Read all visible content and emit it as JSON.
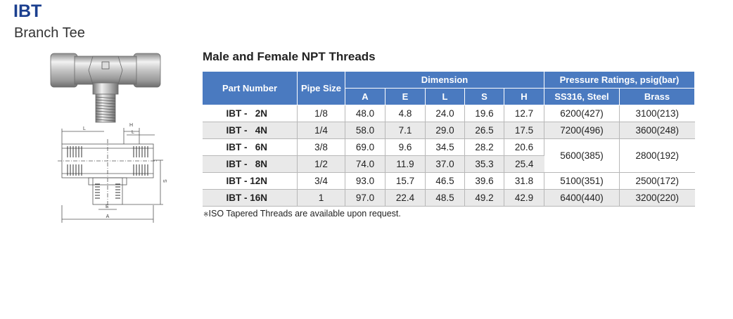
{
  "product": {
    "code": "IBT",
    "name": "Branch Tee"
  },
  "drawing_labels": {
    "l_top": "L",
    "h": "H",
    "l_right": "L",
    "s": "S",
    "e": "E",
    "a": "A"
  },
  "table": {
    "title": "Male and Female NPT Threads",
    "headers": {
      "part_number": "Part Number",
      "pipe_size": "Pipe Size",
      "dimension": "Dimension",
      "pressure": "Pressure Ratings, psig(bar)",
      "dim_cols": [
        "A",
        "E",
        "L",
        "S",
        "H"
      ],
      "pressure_cols": [
        "SS316, Steel",
        "Brass"
      ]
    },
    "rows": [
      {
        "part": "IBT -   2N",
        "pipe": "1/8",
        "A": "48.0",
        "E": "4.8",
        "L": "24.0",
        "S": "19.6",
        "H": "12.7",
        "ss": "6200(427)",
        "brass": "3100(213)"
      },
      {
        "part": "IBT -   4N",
        "pipe": "1/4",
        "A": "58.0",
        "E": "7.1",
        "L": "29.0",
        "S": "26.5",
        "H": "17.5",
        "ss": "7200(496)",
        "brass": "3600(248)"
      },
      {
        "part": "IBT -   6N",
        "pipe": "3/8",
        "A": "69.0",
        "E": "9.6",
        "L": "34.5",
        "S": "28.2",
        "H": "20.6",
        "ss": "5600(385)",
        "brass": "2800(192)"
      },
      {
        "part": "IBT -   8N",
        "pipe": "1/2",
        "A": "74.0",
        "E": "11.9",
        "L": "37.0",
        "S": "35.3",
        "H": "25.4"
      },
      {
        "part": "IBT - 12N",
        "pipe": "3/4",
        "A": "93.0",
        "E": "15.7",
        "L": "46.5",
        "S": "39.6",
        "H": "31.8",
        "ss": "5100(351)",
        "brass": "2500(172)"
      },
      {
        "part": "IBT - 16N",
        "pipe": "1",
        "A": "97.0",
        "E": "22.4",
        "L": "48.5",
        "S": "49.2",
        "H": "42.9",
        "ss": "6400(440)",
        "brass": "3200(220)"
      }
    ],
    "note": "ISO Tapered Threads are available upon request.",
    "note_mark": "※"
  },
  "colors": {
    "title": "#1b3f8f",
    "header_bg": "#4a7ac0",
    "row_alt": "#e9e9e9"
  }
}
